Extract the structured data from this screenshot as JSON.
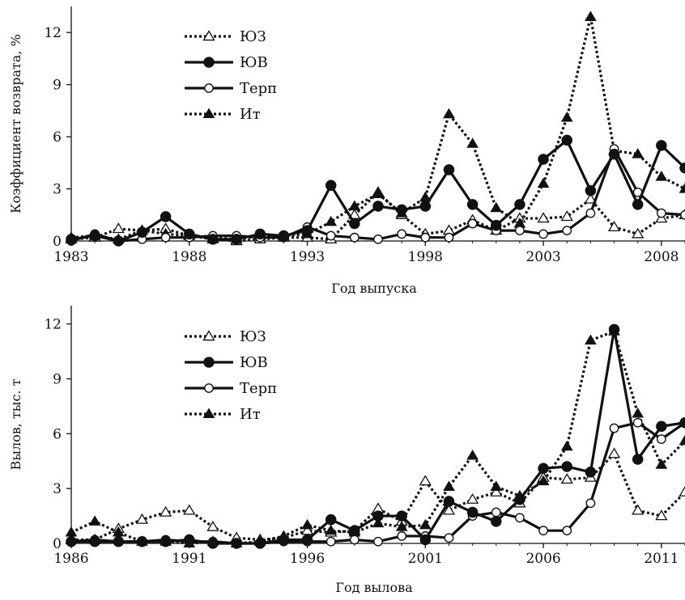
{
  "chart_data": [
    {
      "type": "line",
      "title": "",
      "xlabel": "Год выпуска",
      "ylabel": "Коэффициент возврата, %",
      "xlim": [
        1983,
        2009
      ],
      "ylim": [
        0,
        13.5
      ],
      "xticks": [
        "1983",
        "1988",
        "1993",
        "1998",
        "2003",
        "2008"
      ],
      "yticks": [
        "0",
        "3",
        "6",
        "9",
        "12"
      ],
      "grid": false,
      "legend_position": "top-left",
      "x": [
        1983,
        1984,
        1985,
        1986,
        1987,
        1988,
        1989,
        1990,
        1991,
        1992,
        1993,
        1994,
        1995,
        1996,
        1997,
        1998,
        1999,
        2000,
        2001,
        2002,
        2003,
        2004,
        2005,
        2006,
        2007,
        2008,
        2009
      ],
      "series": [
        {
          "name": "ЮЗ",
          "style": "dotted",
          "marker": "open-triangle",
          "values": [
            0.1,
            0.2,
            0.7,
            0.6,
            0.7,
            0.3,
            0.1,
            0.0,
            0.1,
            0.2,
            0.2,
            0.1,
            1.5,
            2.8,
            1.5,
            0.4,
            0.6,
            1.2,
            0.6,
            1.3,
            1.3,
            1.4,
            2.4,
            0.8,
            0.4,
            1.3,
            1.5
          ]
        },
        {
          "name": "ЮВ",
          "style": "solid",
          "marker": "filled-circle",
          "values": [
            0.1,
            0.3,
            0.0,
            0.5,
            1.4,
            0.4,
            0.1,
            0.1,
            0.4,
            0.3,
            0.6,
            3.2,
            1.0,
            2.0,
            1.8,
            2.0,
            4.1,
            2.1,
            0.9,
            2.1,
            4.7,
            5.8,
            2.9,
            5.0,
            2.1,
            5.5,
            4.2
          ]
        },
        {
          "name": "Терп",
          "style": "solid",
          "marker": "open-circle",
          "values": [
            0.0,
            0.4,
            0.0,
            0.1,
            0.2,
            0.2,
            0.3,
            0.3,
            0.2,
            0.2,
            0.8,
            0.3,
            0.2,
            0.1,
            0.4,
            0.2,
            0.2,
            1.0,
            0.6,
            0.6,
            0.4,
            0.6,
            1.6,
            5.3,
            2.8,
            1.6,
            1.5
          ]
        },
        {
          "name": "Ит",
          "style": "dotted",
          "marker": "filled-triangle",
          "values": [
            0.2,
            0.3,
            0.1,
            0.6,
            0.4,
            0.3,
            0.2,
            0.1,
            0.3,
            0.3,
            0.4,
            1.1,
            2.0,
            2.7,
            1.6,
            2.5,
            7.3,
            5.6,
            1.9,
            1.0,
            3.3,
            7.1,
            12.9,
            5.2,
            5.0,
            3.7,
            3.0
          ]
        }
      ]
    },
    {
      "type": "line",
      "title": "",
      "xlabel": "Год вылова",
      "ylabel": "Вылов, тыс. т",
      "xlim": [
        1986,
        2012
      ],
      "ylim": [
        0,
        13
      ],
      "xticks": [
        "1986",
        "1991",
        "1996",
        "2001",
        "2006",
        "2011"
      ],
      "yticks": [
        "0",
        "3",
        "6",
        "9",
        "12"
      ],
      "grid": false,
      "legend_position": "top-left",
      "x": [
        1986,
        1987,
        1988,
        1989,
        1990,
        1991,
        1992,
        1993,
        1994,
        1995,
        1996,
        1997,
        1998,
        1999,
        2000,
        2001,
        2002,
        2003,
        2004,
        2005,
        2006,
        2007,
        2008,
        2009,
        2010,
        2011,
        2012
      ],
      "series": [
        {
          "name": "ЮЗ",
          "style": "dotted",
          "marker": "open-triangle",
          "values": [
            0.2,
            0.2,
            0.8,
            1.3,
            1.7,
            1.8,
            0.9,
            0.3,
            0.2,
            0.3,
            0.7,
            0.6,
            0.7,
            1.9,
            1.2,
            3.4,
            1.8,
            2.4,
            2.8,
            2.2,
            3.6,
            3.5,
            3.6,
            4.9,
            1.8,
            1.5,
            2.8
          ]
        },
        {
          "name": "ЮВ",
          "style": "solid",
          "marker": "filled-circle",
          "values": [
            0.1,
            0.1,
            0.1,
            0.1,
            0.1,
            0.2,
            0.0,
            0.0,
            0.0,
            0.2,
            0.2,
            1.3,
            0.7,
            1.5,
            1.5,
            0.2,
            2.3,
            1.7,
            1.2,
            2.4,
            4.1,
            4.2,
            3.9,
            11.7,
            4.6,
            6.4,
            6.6
          ]
        },
        {
          "name": "Терп",
          "style": "solid",
          "marker": "open-circle",
          "values": [
            0.1,
            0.2,
            0.1,
            0.1,
            0.2,
            0.1,
            0.1,
            0.0,
            0.0,
            0.1,
            0.1,
            0.1,
            0.2,
            0.1,
            0.4,
            0.4,
            0.3,
            1.5,
            1.7,
            1.4,
            0.7,
            0.7,
            2.2,
            6.3,
            6.6,
            5.7,
            6.6
          ]
        },
        {
          "name": "Ит",
          "style": "dotted",
          "marker": "filled-triangle",
          "values": [
            0.6,
            1.2,
            0.6,
            0.1,
            0.1,
            0.0,
            0.1,
            0.0,
            0.1,
            0.4,
            1.0,
            0.7,
            0.6,
            1.1,
            0.9,
            1.0,
            3.1,
            4.8,
            3.1,
            2.6,
            3.4,
            5.3,
            11.1,
            11.6,
            7.1,
            4.3,
            5.6
          ]
        }
      ]
    }
  ]
}
